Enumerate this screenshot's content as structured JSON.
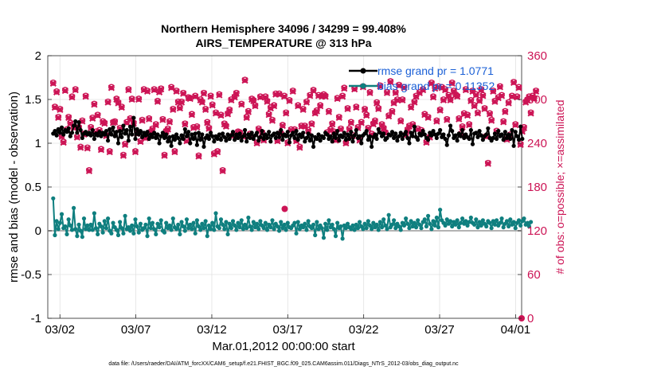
{
  "chart_data": {
    "type": "line",
    "title": "Northern Hemisphere 34096 / 34299 = 99.408%",
    "subtitle": "AIRS_TEMPERATURE @ 313 hPa",
    "xlabel": "Mar.01,2012 00:00:00 start",
    "ylabel": "rmse and bias (model - observation)",
    "ylabel_right": "# of obs: o=possible; ×=assimilated",
    "footer": "data file: /Users/raeder/DAI/ATM_forcXX/CAM6_setup/f.e21.FHIST_BGC.f09_025.CAM6assim.011/Diags_NTrS_2012-03/obs_diag_output.nc",
    "x_ticks": [
      "03/02",
      "03/07",
      "03/12",
      "03/17",
      "03/22",
      "03/27",
      "04/01"
    ],
    "x_tick_values": [
      1,
      6,
      11,
      16,
      21,
      26,
      31
    ],
    "xlim": [
      0.2,
      31.4
    ],
    "y_ticks": [
      "-1",
      "-0.5",
      "0",
      "0.5",
      "1",
      "1.5",
      "2"
    ],
    "ylim": [
      -1,
      2
    ],
    "y_right_ticks": [
      "0",
      "60",
      "120",
      "180",
      "240",
      "300",
      "360"
    ],
    "ylim_right": [
      0,
      360
    ],
    "grid": true,
    "legend_position": "top-right",
    "legend": [
      "rmse grand pr = 1.0771",
      "bias grand pr = 0.11352"
    ],
    "colors": {
      "rmse": "#000000",
      "bias": "#0f7f7f",
      "obs": "#cc1455",
      "zero": "#b3b3b3",
      "grid": "#e2e2e2"
    },
    "series": [
      {
        "name": "rmse",
        "values": [
          1.11,
          1.14,
          1.09,
          1.16,
          1.12,
          1.18,
          1.1,
          1.15,
          1.13,
          1.17,
          1.08,
          1.12,
          1.2,
          1.25,
          1.12,
          1.24,
          1.15,
          1.06,
          1.11,
          1.13,
          1.1,
          1.12,
          1.09,
          1.15,
          1.05,
          1.11,
          1.09,
          1.13,
          1.08,
          1.12,
          1.1,
          1.14,
          1.03,
          1.16,
          1.1,
          1.18,
          1.08,
          1.13,
          1.0,
          1.14,
          1.07,
          1.2,
          1.11,
          1.15,
          1.03,
          1.19,
          1.1,
          1.29,
          1.05,
          1.16,
          1.1,
          1.14,
          1.07,
          1.12,
          1.09,
          1.13,
          1.05,
          1.1,
          1.07,
          1.12,
          1.06,
          1.1,
          1.0,
          1.08,
          1.12,
          1.06,
          1.1,
          1.02,
          1.07,
          0.97,
          1.08,
          1.04,
          1.1,
          1.06,
          1.0,
          1.09,
          1.05,
          1.16,
          1.08,
          1.13,
          1.0,
          1.1,
          1.05,
          1.11,
          0.98,
          1.12,
          1.04,
          1.1,
          0.96,
          1.06,
          1.09,
          1.05,
          1.12,
          1.08,
          1.02,
          1.08,
          1.05,
          1.1,
          1.04,
          1.11,
          1.07,
          1.03,
          1.1,
          1.05,
          1.09,
          1.13,
          1.04,
          1.1,
          1.06,
          1.11,
          1.03,
          1.08,
          1.15,
          1.02,
          1.1,
          1.06,
          1.12,
          1.05,
          1.09,
          1.12,
          1.03,
          1.07,
          1.14,
          1.05,
          1.1,
          1.06,
          1.13,
          1.02,
          1.09,
          1.11,
          1.06,
          1.12,
          1.07,
          1.15,
          1.04,
          1.1,
          1.08,
          1.13,
          1.01,
          1.09,
          1.12,
          1.06,
          1.14,
          1.04,
          1.1,
          1.07,
          1.12,
          1.02,
          1.06,
          1.11,
          1.03,
          1.09,
          0.96,
          1.07,
          1.05,
          1.1,
          1.03,
          1.08,
          1.06,
          1.12,
          1.1,
          1.05,
          1.08,
          1.02,
          1.11,
          1.06,
          1.14,
          1.03,
          1.09,
          1.07,
          1.12,
          1.04,
          1.1,
          1.05,
          1.13,
          1.02,
          1.09,
          1.15,
          1.06,
          1.08,
          1.0,
          1.09,
          1.11,
          1.14,
          1.04,
          1.08,
          0.96,
          1.07,
          1.1,
          1.05,
          1.16,
          1.12,
          1.08,
          1.11,
          1.04,
          1.06,
          1.1,
          1.09,
          1.13,
          1.06,
          1.11,
          1.03,
          1.08,
          1.12,
          1.05,
          1.1,
          1.13,
          1.06,
          1.0,
          1.12,
          1.08,
          1.19,
          1.07,
          1.04,
          1.11,
          1.09,
          1.14,
          1.1,
          1.06,
          1.04,
          1.12,
          1.09,
          1.14,
          1.1,
          1.06,
          1.11,
          1.15,
          1.07,
          1.1,
          1.05,
          0.98,
          1.09,
          1.2,
          1.14,
          1.06,
          1.09,
          1.03,
          1.11,
          1.08,
          1.15,
          1.06,
          1.1,
          1.07,
          1.05,
          1.15,
          0.99,
          1.11,
          1.12,
          1.07,
          1.14,
          1.09,
          1.04,
          1.08,
          1.1,
          1.17,
          1.06,
          1.03,
          1.06,
          1.11,
          1.05,
          1.14,
          1.08,
          1.1,
          1.04,
          1.13,
          1.06,
          1.1,
          1.05,
          1.15,
          0.97,
          1.13,
          1.08,
          1.04,
          1.19,
          1.05
        ]
      },
      {
        "name": "bias",
        "values": [
          0.37,
          -0.05,
          0.11,
          0.02,
          0.09,
          0.19,
          0.03,
          0.05,
          -0.04,
          0.13,
          0.06,
          0.01,
          0.26,
          0.02,
          -0.06,
          0.07,
          0.0,
          -0.07,
          0.14,
          0.02,
          0.06,
          0.01,
          0.07,
          0.01,
          0.2,
          0.03,
          -0.04,
          0.08,
          0.05,
          -0.02,
          0.11,
          0.03,
          0.14,
          0.0,
          -0.03,
          0.09,
          0.04,
          0.01,
          -0.05,
          0.1,
          0.03,
          -0.03,
          0.17,
          0.02,
          0.04,
          0.0,
          0.06,
          -0.03,
          0.13,
          0.05,
          -0.02,
          0.08,
          0.01,
          0.03,
          0.07,
          -0.06,
          0.14,
          0.03,
          0.09,
          0.02,
          -0.04,
          0.08,
          0.04,
          0.12,
          0.0,
          -0.02,
          0.09,
          0.03,
          0.06,
          0.01,
          0.14,
          0.04,
          0.02,
          0.07,
          -0.04,
          0.1,
          0.05,
          0.0,
          0.13,
          0.03,
          0.07,
          0.02,
          0.09,
          -0.03,
          0.12,
          0.05,
          0.01,
          0.08,
          0.03,
          0.11,
          -0.06,
          0.06,
          0.02,
          0.09,
          0.01,
          0.2,
          0.05,
          0.03,
          0.13,
          0.07,
          0.02,
          0.1,
          -0.04,
          0.08,
          0.03,
          0.11,
          0.06,
          0.01,
          0.09,
          0.04,
          0.12,
          0.02,
          0.07,
          0.03,
          0.15,
          0.05,
          0.01,
          0.1,
          0.04,
          0.08,
          0.02,
          0.11,
          0.06,
          0.03,
          0.09,
          0.01,
          0.07,
          0.04,
          0.12,
          0.02,
          0.08,
          0.05,
          0.0,
          0.1,
          0.03,
          0.07,
          0.01,
          0.09,
          0.04,
          0.03,
          0.06,
          0.09,
          -0.03,
          0.1,
          0.02,
          0.06,
          0.04,
          0.08,
          0.01,
          0.11,
          0.05,
          0.03,
          0.07,
          -0.05,
          0.1,
          0.02,
          0.06,
          0.03,
          -0.08,
          0.08,
          0.01,
          0.12,
          0.04,
          0.07,
          0.02,
          -0.06,
          0.09,
          0.03,
          0.05,
          -0.09,
          0.06,
          0.03,
          0.08,
          0.04,
          0.02,
          0.06,
          0.01,
          0.07,
          0.03,
          0.1,
          0.05,
          0.02,
          0.08,
          0.03,
          0.11,
          0.06,
          0.02,
          0.09,
          0.04,
          0.07,
          0.01,
          0.1,
          0.04,
          0.13,
          0.06,
          0.02,
          0.18,
          0.04,
          0.07,
          0.12,
          0.03,
          0.08,
          0.05,
          0.01,
          0.09,
          0.06,
          0.14,
          0.08,
          0.03,
          0.11,
          0.05,
          0.09,
          0.04,
          0.12,
          0.07,
          0.03,
          0.1,
          0.13,
          0.05,
          0.17,
          0.08,
          0.02,
          0.11,
          0.06,
          0.15,
          0.04,
          0.24,
          0.12,
          0.09,
          0.06,
          0.13,
          0.08,
          0.11,
          0.05,
          0.1,
          0.07,
          0.12,
          0.04,
          0.09,
          0.14,
          0.08,
          0.11,
          0.06,
          0.1,
          0.15,
          0.09,
          0.07,
          0.13,
          0.04,
          0.1,
          0.06,
          0.12,
          0.08,
          0.05,
          0.11,
          0.09,
          0.03,
          0.11,
          0.07,
          0.12,
          0.06,
          0.09,
          0.14,
          0.04,
          0.08,
          0.11,
          0.05,
          0.13,
          0.07,
          0.1,
          0.03,
          0.09,
          0.12,
          0.06,
          0.11,
          0.14,
          0.07,
          0.09,
          0.05,
          0.1
        ]
      },
      {
        "name": "obs possible",
        "values": [
          323,
          290,
          311,
          276,
          287,
          250,
          242,
          313,
          259,
          276,
          268,
          304,
          262,
          314,
          249,
          262,
          235,
          271,
          253,
          305,
          234,
          203,
          262,
          275,
          294,
          256,
          279,
          258,
          232,
          270,
          268,
          251,
          297,
          229,
          317,
          269,
          270,
          301,
          296,
          261,
          290,
          224,
          239,
          269,
          314,
          274,
          301,
          268,
          229,
          254,
          301,
          243,
          272,
          314,
          248,
          312,
          274,
          256,
          260,
          314,
          266,
          298,
          311,
          315,
          273,
          224,
          257,
          260,
          270,
          317,
          287,
          229,
          312,
          297,
          289,
          297,
          309,
          267,
          244,
          303,
          302,
          280,
          262,
          305,
          263,
          223,
          300,
          297,
          309,
          287,
          269,
          261,
          305,
          293,
          226,
          282,
          229,
          307,
          279,
          203,
          267,
          264,
          281,
          286,
          300,
          251,
          304,
          309,
          256,
          255,
          294,
          250,
          327,
          276,
          284,
          253,
          301,
          299,
          292,
          241,
          260,
          304,
          255,
          245,
          304,
          298,
          280,
          289,
          272,
          292,
          308,
          244,
          308,
          254,
          265,
          305,
          282,
          241,
          299,
          259,
          312,
          259,
          244,
          292,
          235,
          264,
          287,
          264,
          297,
          258,
          306,
          267,
          313,
          282,
          285,
          306,
          292,
          305,
          307,
          305,
          255,
          284,
          259,
          267,
          256,
          245,
          302,
          276,
          260,
          305,
          316,
          241,
          288,
          260,
          269,
          251,
          315,
          290,
          262,
          245,
          269,
          318,
          287,
          279,
          261,
          310,
          253,
          267,
          271,
          296,
          288,
          319,
          266,
          261,
          255,
          310,
          278,
          325,
          284,
          296,
          310,
          300,
          320,
          271,
          300,
          317,
          252,
          259,
          264,
          290,
          266,
          297,
          305,
          260,
          310,
          258,
          314,
          280,
          242,
          276,
          249,
          323,
          304,
          316,
          271,
          318,
          286,
          317,
          300,
          314,
          273,
          306,
          300,
          323,
          312,
          307,
          305,
          274,
          253,
          263,
          281,
          314,
          279,
          266,
          299,
          312,
          292,
          307,
          282,
          299,
          314,
          306,
          288,
          250,
          213,
          281,
          272,
          312,
          298,
          257,
          303,
          318,
          306,
          270,
          284,
          246,
          296,
          252,
          305,
          324,
          266,
          304,
          317,
          239,
          257,
          262,
          297,
          300,
          304,
          282,
          305,
          302,
          312
        ]
      },
      {
        "name": "obs assimilated",
        "values": [
          322,
          289,
          310,
          275,
          286,
          249,
          241,
          312,
          258,
          275,
          267,
          303,
          261,
          313,
          248,
          261,
          234,
          270,
          252,
          304,
          233,
          202,
          261,
          274,
          293,
          255,
          278,
          257,
          231,
          269,
          267,
          250,
          296,
          228,
          316,
          268,
          269,
          300,
          295,
          260,
          289,
          223,
          238,
          268,
          313,
          273,
          300,
          267,
          228,
          253,
          300,
          242,
          271,
          313,
          247,
          311,
          273,
          255,
          259,
          313,
          265,
          297,
          310,
          314,
          272,
          223,
          256,
          259,
          269,
          316,
          286,
          228,
          311,
          296,
          288,
          296,
          308,
          266,
          243,
          302,
          301,
          279,
          261,
          304,
          262,
          222,
          299,
          296,
          308,
          286,
          268,
          260,
          304,
          292,
          225,
          281,
          228,
          306,
          278,
          202,
          266,
          263,
          280,
          285,
          299,
          250,
          303,
          308,
          255,
          254,
          293,
          249,
          326,
          275,
          283,
          252,
          300,
          298,
          291,
          240,
          259,
          303,
          254,
          244,
          303,
          297,
          279,
          288,
          271,
          291,
          307,
          243,
          307,
          253,
          264,
          304,
          281,
          240,
          298,
          258,
          311,
          258,
          243,
          291,
          234,
          263,
          286,
          263,
          296,
          257,
          305,
          266,
          312,
          281,
          284,
          305,
          291,
          304,
          306,
          304,
          254,
          283,
          258,
          266,
          255,
          244,
          301,
          275,
          259,
          304,
          315,
          240,
          287,
          259,
          268,
          250,
          314,
          289,
          261,
          244,
          268,
          317,
          286,
          278,
          260,
          309,
          252,
          266,
          270,
          295,
          287,
          318,
          265,
          260,
          254,
          309,
          277,
          324,
          283,
          295,
          309,
          299,
          319,
          270,
          299,
          316,
          251,
          258,
          263,
          289,
          265,
          296,
          304,
          259,
          309,
          257,
          313,
          279,
          241,
          275,
          248,
          322,
          303,
          315,
          270,
          317,
          285,
          316,
          299,
          313,
          272,
          305,
          299,
          322,
          311,
          306,
          304,
          273,
          252,
          262,
          280,
          313,
          278,
          265,
          298,
          311,
          291,
          306,
          281,
          298,
          313,
          305,
          287,
          249,
          212,
          280,
          271,
          311,
          297,
          256,
          302,
          317,
          305,
          269,
          283,
          245,
          295,
          251,
          304,
          323,
          265,
          303,
          316,
          238,
          256,
          261,
          296,
          299,
          303,
          281,
          304,
          301,
          311
        ]
      }
    ],
    "extra_points": [
      {
        "series": "obs possible",
        "x": 31.4,
        "y": 0,
        "label": "0"
      },
      {
        "series": "obs possible",
        "x": 15.8,
        "y": 150
      }
    ]
  }
}
